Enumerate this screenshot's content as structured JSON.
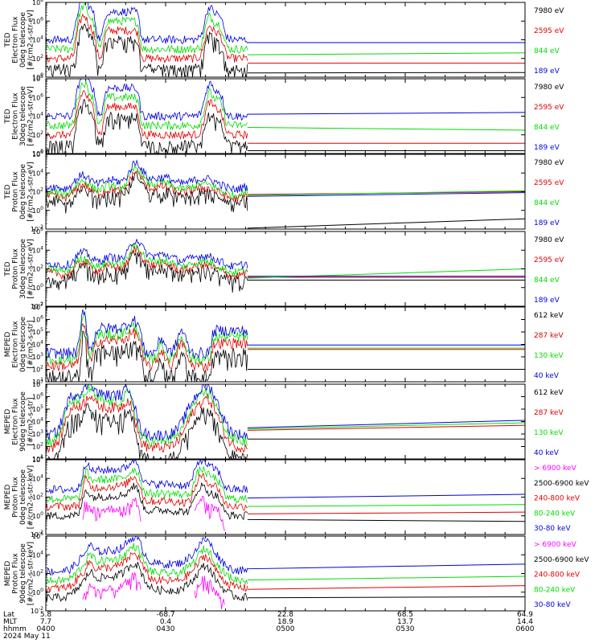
{
  "chart_data": [
    {
      "type": "line",
      "ylabel": [
        "TED",
        "Electron Flux",
        "0deg telescope",
        "[#/cm2-s-str-eV]"
      ],
      "ylog": [
        0,
        8
      ],
      "yticks": [
        0,
        2,
        4,
        6,
        8
      ],
      "profile": "ted_e",
      "series": [
        {
          "name": "7980 eV",
          "color": "#000000",
          "offset": 0,
          "tail": [
            0.45,
            0.5
          ]
        },
        {
          "name": "2595 eV",
          "color": "#e00000",
          "offset": 1.0,
          "tail": [
            1.5,
            1.5
          ]
        },
        {
          "name": "844 eV",
          "color": "#00dd00",
          "offset": 2.0,
          "tail": [
            2.4,
            2.6
          ]
        },
        {
          "name": "189 eV",
          "color": "#0000e0",
          "offset": 3.0,
          "tail": [
            3.7,
            3.7
          ]
        }
      ]
    },
    {
      "type": "line",
      "ylabel": [
        "TED",
        "Electron Flux",
        "30deg telescope",
        "[#/cm2-s-str-eV]"
      ],
      "ylog": [
        0,
        8
      ],
      "yticks": [
        0,
        2,
        4,
        6,
        8
      ],
      "profile": "ted_e",
      "series": [
        {
          "name": "7980 eV",
          "color": "#000000",
          "offset": 0,
          "tail": [
            0.3,
            0.3
          ]
        },
        {
          "name": "2595 eV",
          "color": "#e00000",
          "offset": 1.0,
          "tail": [
            1.1,
            1.1
          ]
        },
        {
          "name": "844 eV",
          "color": "#00dd00",
          "offset": 2.0,
          "tail": [
            2.8,
            2.5
          ]
        },
        {
          "name": "189 eV",
          "color": "#0000e0",
          "offset": 3.0,
          "tail": [
            4.2,
            4.4
          ]
        }
      ]
    },
    {
      "type": "line",
      "ylabel": [
        "TED",
        "Proton Flux",
        "0deg telescope",
        "[#/cm2-s-str-eV]"
      ],
      "ylog": [
        -2,
        6
      ],
      "yticks": [
        -2,
        0,
        2,
        4,
        6
      ],
      "profile": "ted_p",
      "series": [
        {
          "name": "7980 eV",
          "color": "#000000",
          "offset": 0,
          "tail": [
            -1.9,
            -0.9
          ]
        },
        {
          "name": "2595 eV",
          "color": "#e00000",
          "offset": 0.4,
          "tail": [
            1.7,
            2.0
          ]
        },
        {
          "name": "844 eV",
          "color": "#00dd00",
          "offset": 0.8,
          "tail": [
            1.6,
            2.1
          ]
        },
        {
          "name": "189 eV",
          "color": "#0000e0",
          "offset": 1.4,
          "tail": [
            1.5,
            1.9
          ]
        }
      ]
    },
    {
      "type": "line",
      "ylabel": [
        "TED",
        "Proton Flux",
        "30deg telescope",
        "[#/cm2-s-str-eV]"
      ],
      "ylog": [
        -2,
        6
      ],
      "yticks": [
        -2,
        0,
        2,
        4,
        6
      ],
      "profile": "ted_p",
      "series": [
        {
          "name": "7980 eV",
          "color": "#000000",
          "offset": 0,
          "tail": [
            0.8,
            0.8
          ]
        },
        {
          "name": "2595 eV",
          "color": "#e00000",
          "offset": 0.4,
          "tail": [
            1.1,
            1.1
          ]
        },
        {
          "name": "844 eV",
          "color": "#00dd00",
          "offset": 0.8,
          "tail": [
            1.0,
            2.0
          ]
        },
        {
          "name": "189 eV",
          "color": "#0000e0",
          "offset": 1.4,
          "tail": [
            1.2,
            1.2
          ]
        }
      ]
    },
    {
      "type": "line",
      "ylabel": [
        "MEPED",
        "Electron Flux",
        "0deg telescope",
        "[#/cm2-s-str]"
      ],
      "ylog": [
        1,
        7
      ],
      "yticks": [
        1,
        2,
        3,
        4,
        5,
        6,
        7
      ],
      "profile": "meped_e0",
      "series": [
        {
          "name": "612 keV",
          "color": "#000000",
          "offset": 0,
          "tail": [
            2.0,
            2.0
          ]
        },
        {
          "name": "287 keV",
          "color": "#e00000",
          "offset": 0.8,
          "tail": [
            3.6,
            3.6
          ]
        },
        {
          "name": "130 keV",
          "color": "#00dd00",
          "offset": 1.3,
          "tail": [
            3.7,
            3.7
          ]
        },
        {
          "name": "40 keV",
          "color": "#0000e0",
          "offset": 1.8,
          "tail": [
            3.95,
            3.95
          ]
        }
      ]
    },
    {
      "type": "line",
      "ylabel": [
        "MEPED",
        "Electron Flux",
        "90deg telescope",
        "[#/cm2-s-str]"
      ],
      "ylog": [
        1,
        7
      ],
      "yticks": [
        1,
        2,
        3,
        4,
        5,
        6,
        7
      ],
      "profile": "meped_e90",
      "series": [
        {
          "name": "612 keV",
          "color": "#000000",
          "offset": 0,
          "tail": [
            2.6,
            2.6
          ]
        },
        {
          "name": "287 keV",
          "color": "#e00000",
          "offset": 0.9,
          "tail": [
            3.3,
            3.7
          ]
        },
        {
          "name": "130 keV",
          "color": "#00dd00",
          "offset": 1.4,
          "tail": [
            3.4,
            3.9
          ]
        },
        {
          "name": "40 keV",
          "color": "#0000e0",
          "offset": 1.9,
          "tail": [
            3.5,
            4.1
          ]
        }
      ]
    },
    {
      "type": "line",
      "ylabel": [
        "MEPED",
        "Proton Flux",
        "0deg telescope",
        "[#/cm2-s-str-keV]"
      ],
      "ylog": [
        -2,
        6
      ],
      "yticks": [
        -2,
        0,
        2,
        4,
        6
      ],
      "profile": "meped_p0",
      "series": [
        {
          "name": "> 6900 keV",
          "color": "#ff00ff",
          "offset": -2.6,
          "tail": null
        },
        {
          "name": "2500-6900 keV",
          "color": "#000000",
          "offset": -1.2,
          "tail": [
            -0.4,
            -0.6
          ]
        },
        {
          "name": "240-800 keV",
          "color": "#e00000",
          "offset": -0.2,
          "tail": [
            0.2,
            0.4
          ]
        },
        {
          "name": "80-240 keV",
          "color": "#00dd00",
          "offset": 0.6,
          "tail": [
            1.0,
            1.2
          ]
        },
        {
          "name": "30-80 keV",
          "color": "#0000e0",
          "offset": 1.6,
          "tail": [
            1.9,
            2.3
          ]
        }
      ]
    },
    {
      "type": "line",
      "ylabel": [
        "MEPED",
        "Proton Flux",
        "90deg telescope",
        "[#/cm2-s-str-keV]"
      ],
      "ylog": [
        -2,
        6
      ],
      "yticks": [
        -2,
        0,
        2,
        4,
        6
      ],
      "profile": "meped_p90",
      "series": [
        {
          "name": "> 6900 keV",
          "color": "#ff00ff",
          "offset": -2.6,
          "tail": null
        },
        {
          "name": "2500-6900 keV",
          "color": "#000000",
          "offset": -1.2,
          "tail": [
            -0.6,
            -0.5
          ]
        },
        {
          "name": "240-800 keV",
          "color": "#e00000",
          "offset": -0.2,
          "tail": [
            0.3,
            0.7
          ]
        },
        {
          "name": "80-240 keV",
          "color": "#00dd00",
          "offset": 0.6,
          "tail": [
            1.3,
            1.7
          ]
        },
        {
          "name": "30-80 keV",
          "color": "#0000e0",
          "offset": 1.6,
          "tail": [
            2.5,
            3.0
          ]
        }
      ]
    }
  ],
  "x_axis": {
    "row_labels": [
      "Lat",
      "MLT",
      "hhmm",
      "2024 May 11"
    ],
    "ticks": [
      {
        "lat": "5.8",
        "mlt": "7.7",
        "hhmm": "0400"
      },
      {
        "lat": "-68.7",
        "mlt": "0.4",
        "hhmm": "0430"
      },
      {
        "lat": "22.8",
        "mlt": "18.9",
        "hhmm": "0500"
      },
      {
        "lat": "68.5",
        "mlt": "13.7",
        "hhmm": "0530"
      },
      {
        "lat": "64.9",
        "mlt": "14.4",
        "hhmm": "0600"
      }
    ],
    "minutes_range": [
      0,
      120
    ],
    "data_end_minute": 50.5
  },
  "colors": {
    "black": "#000000",
    "red": "#e00000",
    "green": "#00dd00",
    "blue": "#0000e0",
    "magenta": "#ff00ff"
  }
}
